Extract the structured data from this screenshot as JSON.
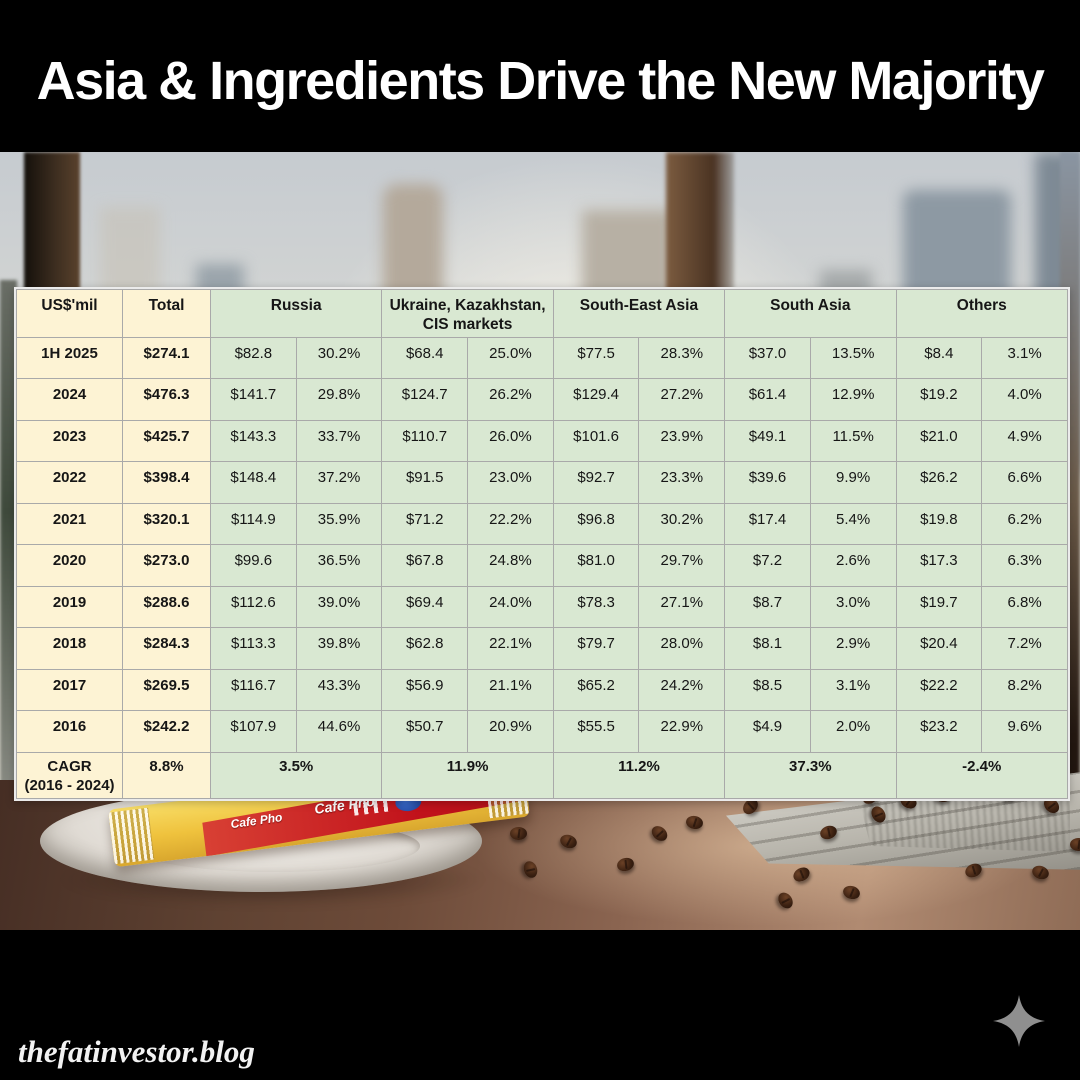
{
  "title": "Asia & Ingredients Drive the New Majority",
  "branding": "thefatinvestor.blog",
  "photo": {
    "sachet_label": "Cafe Pho"
  },
  "colors": {
    "cream": "#fdf3d4",
    "green": "#d9e8d2",
    "sachet_red": "#c1121b",
    "sachet_yellow": "#efc23d"
  },
  "chart_data": {
    "type": "table",
    "unit_header": "US$'mil",
    "total_header": "Total",
    "region_headers": [
      "Russia",
      "Ukraine, Kazakhstan, CIS markets",
      "South-East Asia",
      "South Asia",
      "Others"
    ],
    "rows": [
      {
        "period": "1H 2025",
        "total": "$274.1",
        "cells": [
          "$82.8",
          "30.2%",
          "$68.4",
          "25.0%",
          "$77.5",
          "28.3%",
          "$37.0",
          "13.5%",
          "$8.4",
          "3.1%"
        ]
      },
      {
        "period": "2024",
        "total": "$476.3",
        "cells": [
          "$141.7",
          "29.8%",
          "$124.7",
          "26.2%",
          "$129.4",
          "27.2%",
          "$61.4",
          "12.9%",
          "$19.2",
          "4.0%"
        ]
      },
      {
        "period": "2023",
        "total": "$425.7",
        "cells": [
          "$143.3",
          "33.7%",
          "$110.7",
          "26.0%",
          "$101.6",
          "23.9%",
          "$49.1",
          "11.5%",
          "$21.0",
          "4.9%"
        ]
      },
      {
        "period": "2022",
        "total": "$398.4",
        "cells": [
          "$148.4",
          "37.2%",
          "$91.5",
          "23.0%",
          "$92.7",
          "23.3%",
          "$39.6",
          "9.9%",
          "$26.2",
          "6.6%"
        ]
      },
      {
        "period": "2021",
        "total": "$320.1",
        "cells": [
          "$114.9",
          "35.9%",
          "$71.2",
          "22.2%",
          "$96.8",
          "30.2%",
          "$17.4",
          "5.4%",
          "$19.8",
          "6.2%"
        ]
      },
      {
        "period": "2020",
        "total": "$273.0",
        "cells": [
          "$99.6",
          "36.5%",
          "$67.8",
          "24.8%",
          "$81.0",
          "29.7%",
          "$7.2",
          "2.6%",
          "$17.3",
          "6.3%"
        ]
      },
      {
        "period": "2019",
        "total": "$288.6",
        "cells": [
          "$112.6",
          "39.0%",
          "$69.4",
          "24.0%",
          "$78.3",
          "27.1%",
          "$8.7",
          "3.0%",
          "$19.7",
          "6.8%"
        ]
      },
      {
        "period": "2018",
        "total": "$284.3",
        "cells": [
          "$113.3",
          "39.8%",
          "$62.8",
          "22.1%",
          "$79.7",
          "28.0%",
          "$8.1",
          "2.9%",
          "$20.4",
          "7.2%"
        ]
      },
      {
        "period": "2017",
        "total": "$269.5",
        "cells": [
          "$116.7",
          "43.3%",
          "$56.9",
          "21.1%",
          "$65.2",
          "24.2%",
          "$8.5",
          "3.1%",
          "$22.2",
          "8.2%"
        ]
      },
      {
        "period": "2016",
        "total": "$242.2",
        "cells": [
          "$107.9",
          "44.6%",
          "$50.7",
          "20.9%",
          "$55.5",
          "22.9%",
          "$4.9",
          "2.0%",
          "$23.2",
          "9.6%"
        ]
      }
    ],
    "cagr": {
      "label": "CAGR",
      "label2": "(2016 - 2024)",
      "total": "8.8%",
      "values": [
        "3.5%",
        "11.9%",
        "11.2%",
        "37.3%",
        "-2.4%"
      ]
    }
  }
}
